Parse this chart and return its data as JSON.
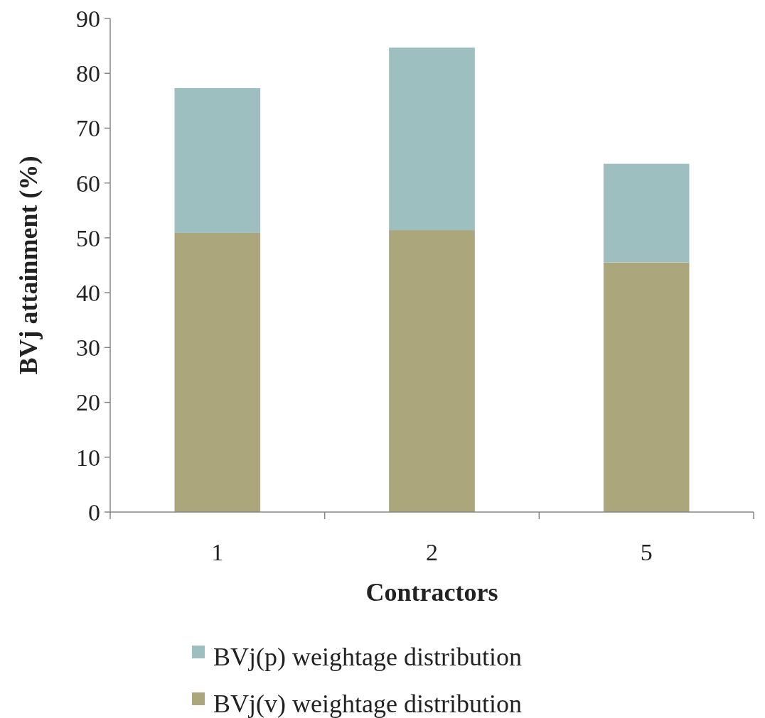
{
  "chart_data": {
    "type": "bar",
    "stacked": true,
    "xlabel": "Contractors",
    "ylabel": "BVj attainment (%)",
    "categories": [
      "1",
      "2",
      "5"
    ],
    "series": [
      {
        "name": "BVj(v) weightage distribution",
        "color": "#aba67c",
        "values": [
          50.9,
          51.4,
          45.5
        ]
      },
      {
        "name": "BVj(p) weightage distribution",
        "color": "#9dbfbf",
        "values": [
          26.4,
          33.3,
          18.0
        ]
      }
    ],
    "ylim": [
      0,
      90
    ],
    "yticks": [
      0,
      10,
      20,
      30,
      40,
      50,
      60,
      70,
      80,
      90
    ],
    "grid": false,
    "legend": "bottom"
  }
}
